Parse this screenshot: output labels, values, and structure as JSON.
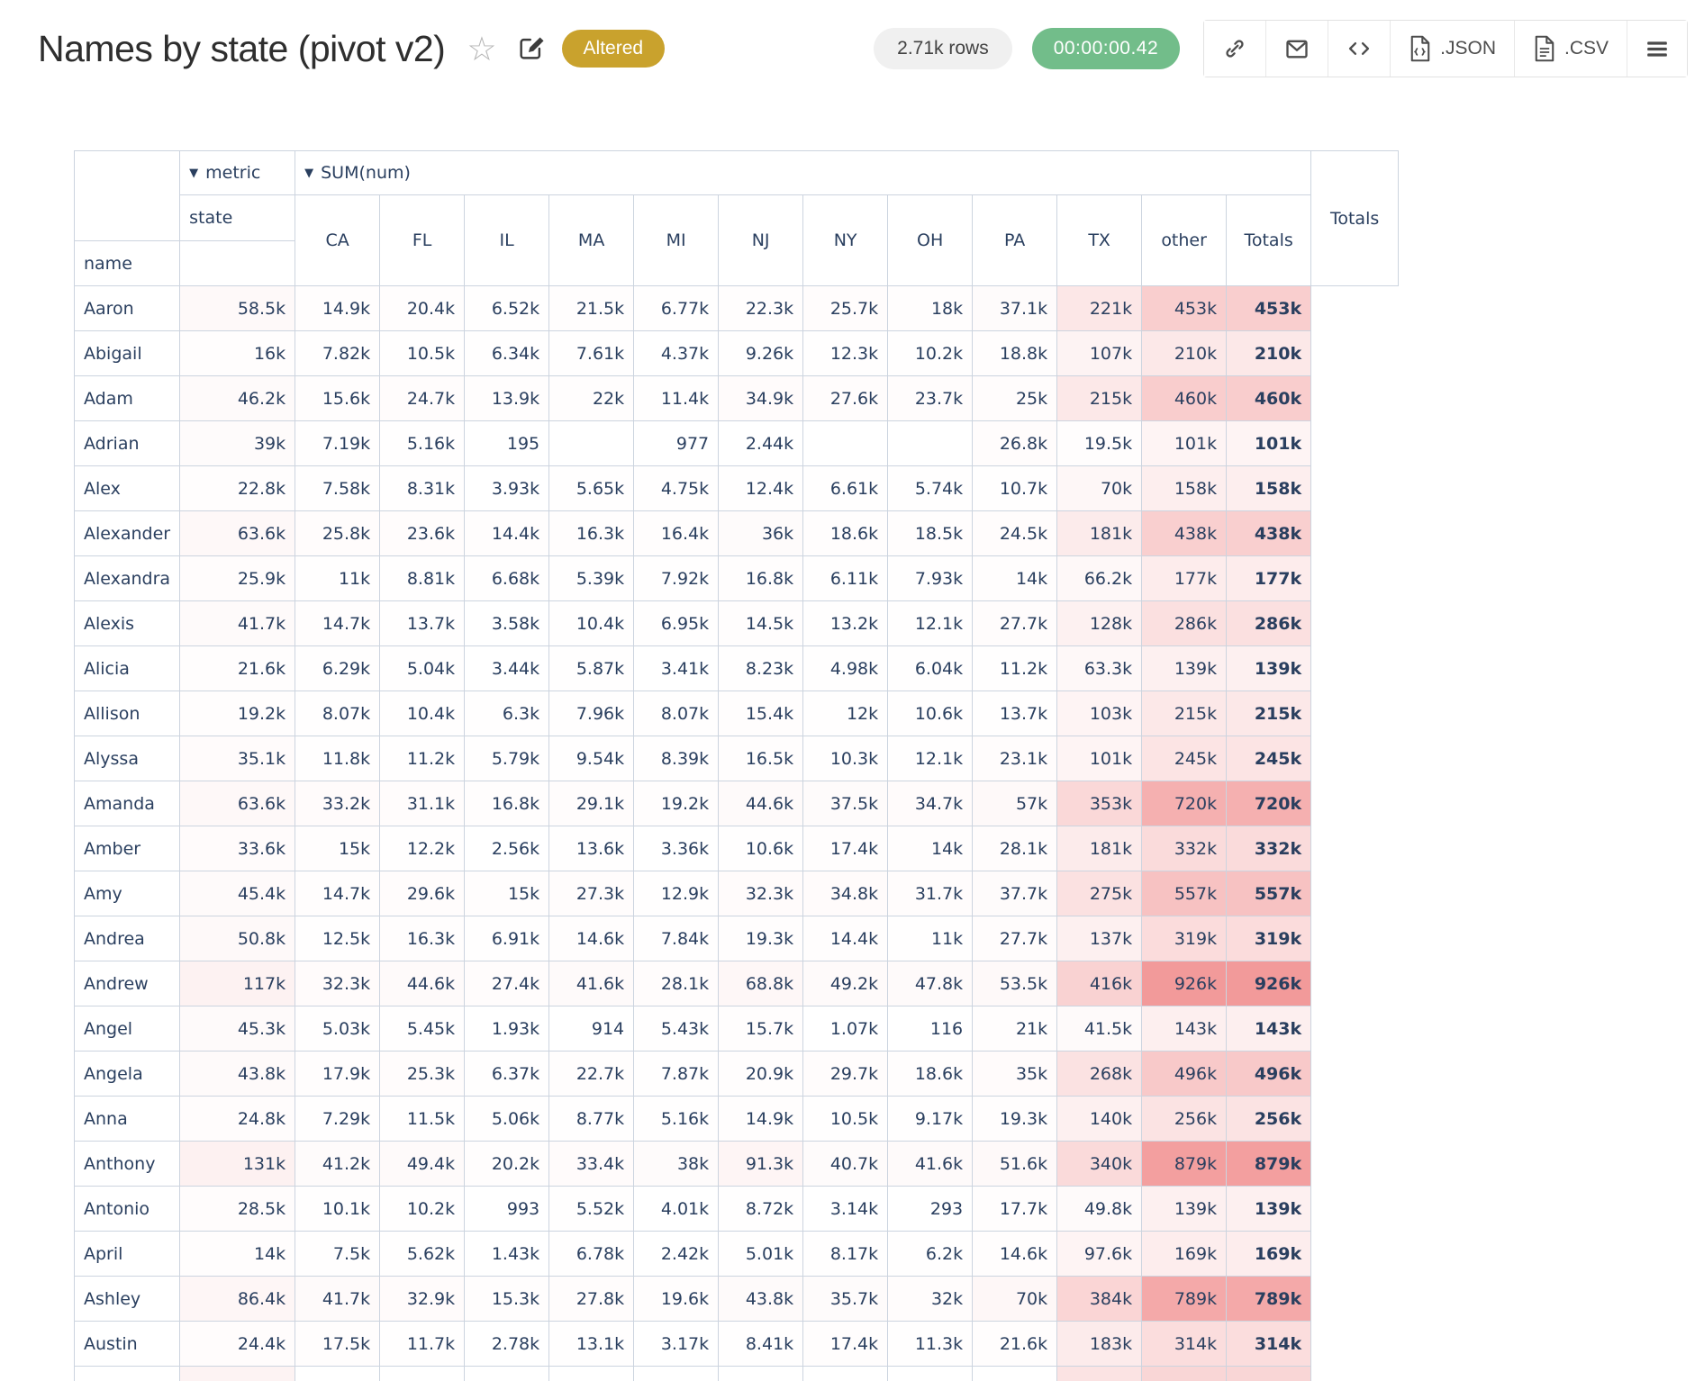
{
  "header": {
    "title": "Names by state (pivot v2)",
    "status_badge": "Altered",
    "rows_badge": "2.71k rows",
    "duration_badge": "00:00:00.42",
    "star_glyph": "☆",
    "toolbar": {
      "json_label": ".JSON",
      "csv_label": ".CSV"
    }
  },
  "colors": {
    "badge_gold": "#c9a22d",
    "badge_green": "#72bd8a",
    "table_text": "#2a3f5f",
    "table_border": "#ccd4df",
    "heat_max_color": "#f29a9a"
  },
  "pivot": {
    "metric_label": "metric",
    "metric_value": "SUM(num)",
    "dropdown_glyph": "▼",
    "col_axis_label": "state",
    "row_axis_label": "name",
    "columns": [
      "CA",
      "FL",
      "IL",
      "MA",
      "MI",
      "NJ",
      "NY",
      "OH",
      "PA",
      "TX",
      "other",
      "Totals"
    ],
    "grand_total_label": "Totals",
    "heat_max_value": 926000,
    "rows": [
      {
        "name": "Aaron",
        "values": [
          "58.5k",
          "14.9k",
          "20.4k",
          "6.52k",
          "21.5k",
          "6.77k",
          "22.3k",
          "25.7k",
          "18k",
          "37.1k",
          "221k",
          "453k"
        ],
        "total": "453k"
      },
      {
        "name": "Abigail",
        "values": [
          "16k",
          "7.82k",
          "10.5k",
          "6.34k",
          "7.61k",
          "4.37k",
          "9.26k",
          "12.3k",
          "10.2k",
          "18.8k",
          "107k",
          "210k"
        ],
        "total": "210k"
      },
      {
        "name": "Adam",
        "values": [
          "46.2k",
          "15.6k",
          "24.7k",
          "13.9k",
          "22k",
          "11.4k",
          "34.9k",
          "27.6k",
          "23.7k",
          "25k",
          "215k",
          "460k"
        ],
        "total": "460k"
      },
      {
        "name": "Adrian",
        "values": [
          "39k",
          "7.19k",
          "5.16k",
          "195",
          "",
          "977",
          "2.44k",
          "",
          "",
          "26.8k",
          "19.5k",
          "101k"
        ],
        "total": "101k"
      },
      {
        "name": "Alex",
        "values": [
          "22.8k",
          "7.58k",
          "8.31k",
          "3.93k",
          "5.65k",
          "4.75k",
          "12.4k",
          "6.61k",
          "5.74k",
          "10.7k",
          "70k",
          "158k"
        ],
        "total": "158k"
      },
      {
        "name": "Alexander",
        "values": [
          "63.6k",
          "25.8k",
          "23.6k",
          "14.4k",
          "16.3k",
          "16.4k",
          "36k",
          "18.6k",
          "18.5k",
          "24.5k",
          "181k",
          "438k"
        ],
        "total": "438k"
      },
      {
        "name": "Alexandra",
        "values": [
          "25.9k",
          "11k",
          "8.81k",
          "6.68k",
          "5.39k",
          "7.92k",
          "16.8k",
          "6.11k",
          "7.93k",
          "14k",
          "66.2k",
          "177k"
        ],
        "total": "177k"
      },
      {
        "name": "Alexis",
        "values": [
          "41.7k",
          "14.7k",
          "13.7k",
          "3.58k",
          "10.4k",
          "6.95k",
          "14.5k",
          "13.2k",
          "12.1k",
          "27.7k",
          "128k",
          "286k"
        ],
        "total": "286k"
      },
      {
        "name": "Alicia",
        "values": [
          "21.6k",
          "6.29k",
          "5.04k",
          "3.44k",
          "5.87k",
          "3.41k",
          "8.23k",
          "4.98k",
          "6.04k",
          "11.2k",
          "63.3k",
          "139k"
        ],
        "total": "139k"
      },
      {
        "name": "Allison",
        "values": [
          "19.2k",
          "8.07k",
          "10.4k",
          "6.3k",
          "7.96k",
          "8.07k",
          "15.4k",
          "12k",
          "10.6k",
          "13.7k",
          "103k",
          "215k"
        ],
        "total": "215k"
      },
      {
        "name": "Alyssa",
        "values": [
          "35.1k",
          "11.8k",
          "11.2k",
          "5.79k",
          "9.54k",
          "8.39k",
          "16.5k",
          "10.3k",
          "12.1k",
          "23.1k",
          "101k",
          "245k"
        ],
        "total": "245k"
      },
      {
        "name": "Amanda",
        "values": [
          "63.6k",
          "33.2k",
          "31.1k",
          "16.8k",
          "29.1k",
          "19.2k",
          "44.6k",
          "37.5k",
          "34.7k",
          "57k",
          "353k",
          "720k"
        ],
        "total": "720k"
      },
      {
        "name": "Amber",
        "values": [
          "33.6k",
          "15k",
          "12.2k",
          "2.56k",
          "13.6k",
          "3.36k",
          "10.6k",
          "17.4k",
          "14k",
          "28.1k",
          "181k",
          "332k"
        ],
        "total": "332k"
      },
      {
        "name": "Amy",
        "values": [
          "45.4k",
          "14.7k",
          "29.6k",
          "15k",
          "27.3k",
          "12.9k",
          "32.3k",
          "34.8k",
          "31.7k",
          "37.7k",
          "275k",
          "557k"
        ],
        "total": "557k"
      },
      {
        "name": "Andrea",
        "values": [
          "50.8k",
          "12.5k",
          "16.3k",
          "6.91k",
          "14.6k",
          "7.84k",
          "19.3k",
          "14.4k",
          "11k",
          "27.7k",
          "137k",
          "319k"
        ],
        "total": "319k"
      },
      {
        "name": "Andrew",
        "values": [
          "117k",
          "32.3k",
          "44.6k",
          "27.4k",
          "41.6k",
          "28.1k",
          "68.8k",
          "49.2k",
          "47.8k",
          "53.5k",
          "416k",
          "926k"
        ],
        "total": "926k"
      },
      {
        "name": "Angel",
        "values": [
          "45.3k",
          "5.03k",
          "5.45k",
          "1.93k",
          "914",
          "5.43k",
          "15.7k",
          "1.07k",
          "116",
          "21k",
          "41.5k",
          "143k"
        ],
        "total": "143k"
      },
      {
        "name": "Angela",
        "values": [
          "43.8k",
          "17.9k",
          "25.3k",
          "6.37k",
          "22.7k",
          "7.87k",
          "20.9k",
          "29.7k",
          "18.6k",
          "35k",
          "268k",
          "496k"
        ],
        "total": "496k"
      },
      {
        "name": "Anna",
        "values": [
          "24.8k",
          "7.29k",
          "11.5k",
          "5.06k",
          "8.77k",
          "5.16k",
          "14.9k",
          "10.5k",
          "9.17k",
          "19.3k",
          "140k",
          "256k"
        ],
        "total": "256k"
      },
      {
        "name": "Anthony",
        "values": [
          "131k",
          "41.2k",
          "49.4k",
          "20.2k",
          "33.4k",
          "38k",
          "91.3k",
          "40.7k",
          "41.6k",
          "51.6k",
          "340k",
          "879k"
        ],
        "total": "879k"
      },
      {
        "name": "Antonio",
        "values": [
          "28.5k",
          "10.1k",
          "10.2k",
          "993",
          "5.52k",
          "4.01k",
          "8.72k",
          "3.14k",
          "293",
          "17.7k",
          "49.8k",
          "139k"
        ],
        "total": "139k"
      },
      {
        "name": "April",
        "values": [
          "14k",
          "7.5k",
          "5.62k",
          "1.43k",
          "6.78k",
          "2.42k",
          "5.01k",
          "8.17k",
          "6.2k",
          "14.6k",
          "97.6k",
          "169k"
        ],
        "total": "169k"
      },
      {
        "name": "Ashley",
        "values": [
          "86.4k",
          "41.7k",
          "32.9k",
          "15.3k",
          "27.8k",
          "19.6k",
          "43.8k",
          "35.7k",
          "32k",
          "70k",
          "384k",
          "789k"
        ],
        "total": "789k"
      },
      {
        "name": "Austin",
        "values": [
          "24.4k",
          "17.5k",
          "11.7k",
          "2.78k",
          "13.1k",
          "3.17k",
          "8.41k",
          "17.4k",
          "11.3k",
          "21.6k",
          "183k",
          "314k"
        ],
        "total": "314k"
      }
    ],
    "partial_row_visible": true
  }
}
